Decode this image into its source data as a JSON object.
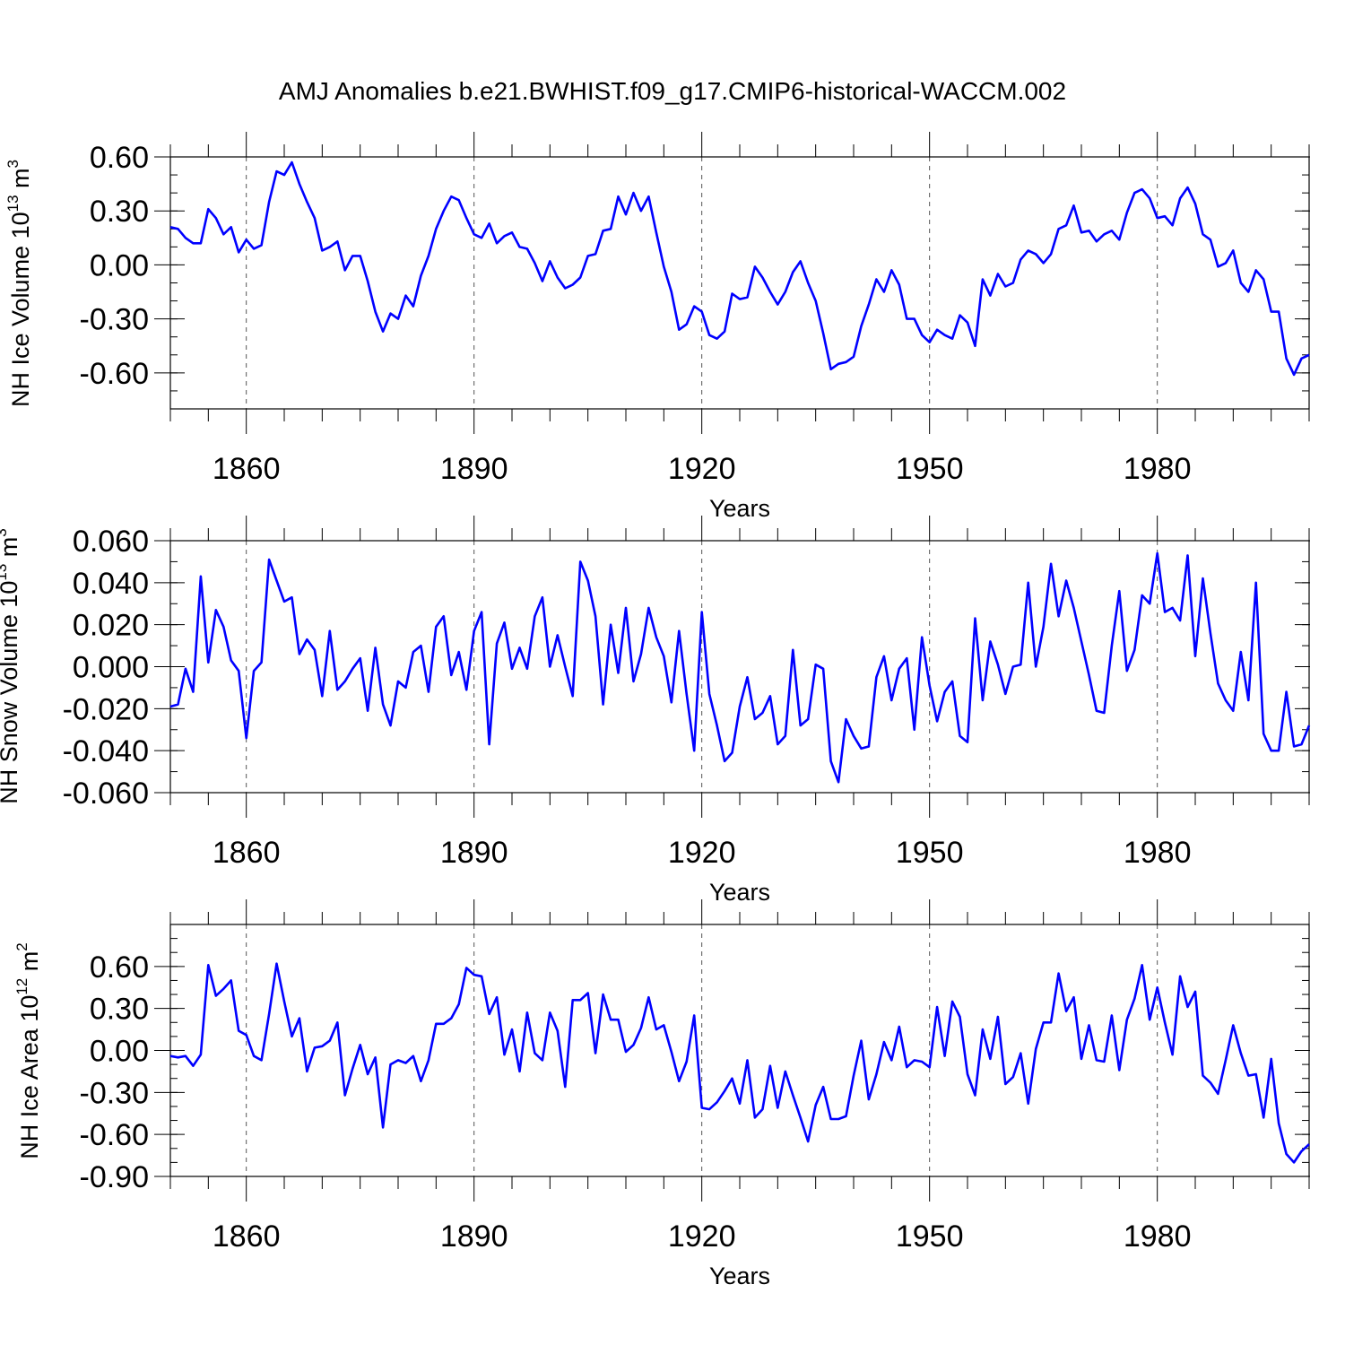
{
  "figure_title": "AMJ Anomalies b.e21.BWHIST.f09_g17.CMIP6-historical-WACCM.002",
  "colors": {
    "series": "#0000ff",
    "grid": "#555555",
    "axis": "#000000"
  },
  "chart_data": [
    {
      "type": "line",
      "title": "AMJ Anomalies b.e21.BWHIST.f09_g17.CMIP6-historical-WACCM.002",
      "xlabel": "Years",
      "ylabel": "NH Ice Volume 10",
      "ylabel_exp": "13",
      "ylabel_unit": " m",
      "ylabel_unit_exp": "3",
      "x_start": 1850,
      "x_step": 1,
      "xlim": [
        1850,
        2000
      ],
      "ylim": [
        -0.8,
        0.6
      ],
      "ymajor": [
        -0.6,
        -0.3,
        0.0,
        0.3,
        0.6
      ],
      "ymajor_labels": [
        "-0.60",
        "-0.30",
        "0.00",
        "0.30",
        "0.60"
      ],
      "yminor_step": 0.1,
      "xmajor": [
        1860,
        1890,
        1920,
        1950,
        1980
      ],
      "xmajor_labels": [
        "1860",
        "1890",
        "1920",
        "1950",
        "1980"
      ],
      "xgrid": true,
      "values": [
        0.21,
        0.2,
        0.15,
        0.12,
        0.12,
        0.31,
        0.26,
        0.17,
        0.21,
        0.07,
        0.14,
        0.09,
        0.11,
        0.35,
        0.52,
        0.5,
        0.57,
        0.45,
        0.35,
        0.26,
        0.08,
        0.1,
        0.13,
        -0.03,
        0.05,
        0.05,
        -0.09,
        -0.26,
        -0.37,
        -0.27,
        -0.3,
        -0.17,
        -0.23,
        -0.06,
        0.05,
        0.2,
        0.3,
        0.38,
        0.36,
        0.26,
        0.17,
        0.15,
        0.23,
        0.12,
        0.16,
        0.18,
        0.1,
        0.09,
        0.01,
        -0.09,
        0.02,
        -0.07,
        -0.13,
        -0.11,
        -0.07,
        0.05,
        0.06,
        0.19,
        0.2,
        0.38,
        0.28,
        0.4,
        0.3,
        0.38,
        0.18,
        -0.01,
        -0.15,
        -0.36,
        -0.33,
        -0.23,
        -0.26,
        -0.39,
        -0.41,
        -0.37,
        -0.16,
        -0.19,
        -0.18,
        -0.01,
        -0.07,
        -0.15,
        -0.22,
        -0.15,
        -0.04,
        0.02,
        -0.1,
        -0.2,
        -0.38,
        -0.58,
        -0.55,
        -0.54,
        -0.51,
        -0.34,
        -0.22,
        -0.08,
        -0.15,
        -0.03,
        -0.11,
        -0.3,
        -0.3,
        -0.39,
        -0.43,
        -0.36,
        -0.39,
        -0.41,
        -0.28,
        -0.32,
        -0.45,
        -0.08,
        -0.17,
        -0.05,
        -0.12,
        -0.1,
        0.03,
        0.08,
        0.06,
        0.01,
        0.06,
        0.2,
        0.22,
        0.33,
        0.18,
        0.19,
        0.13,
        0.17,
        0.19,
        0.14,
        0.29,
        0.4,
        0.42,
        0.37,
        0.26,
        0.27,
        0.22,
        0.37,
        0.43,
        0.34,
        0.17,
        0.14,
        -0.01,
        0.01,
        0.08,
        -0.1,
        -0.15,
        -0.03,
        -0.08,
        -0.26,
        -0.26,
        -0.52,
        -0.61,
        -0.52,
        -0.5
      ]
    },
    {
      "type": "line",
      "xlabel": "Years",
      "ylabel": "NH Snow Volume 10",
      "ylabel_exp": "13",
      "ylabel_unit": " m",
      "ylabel_unit_exp": "3",
      "x_start": 1850,
      "x_step": 1,
      "xlim": [
        1850,
        2000
      ],
      "ylim": [
        -0.06,
        0.06
      ],
      "ymajor": [
        -0.06,
        -0.04,
        -0.02,
        0.0,
        0.02,
        0.04,
        0.06
      ],
      "ymajor_labels": [
        "-0.060",
        "-0.040",
        "-0.020",
        "0.000",
        "0.020",
        "0.040",
        "0.060"
      ],
      "yminor_step": 0.01,
      "xmajor": [
        1860,
        1890,
        1920,
        1950,
        1980
      ],
      "xmajor_labels": [
        "1860",
        "1890",
        "1920",
        "1950",
        "1980"
      ],
      "xgrid": true,
      "values": [
        -0.019,
        -0.018,
        -0.001,
        -0.012,
        0.043,
        0.002,
        0.027,
        0.019,
        0.003,
        -0.002,
        -0.034,
        -0.002,
        0.002,
        0.051,
        0.041,
        0.031,
        0.033,
        0.006,
        0.013,
        0.008,
        -0.014,
        0.017,
        -0.011,
        -0.007,
        -0.001,
        0.004,
        -0.021,
        0.009,
        -0.018,
        -0.028,
        -0.007,
        -0.01,
        0.007,
        0.01,
        -0.012,
        0.019,
        0.024,
        -0.004,
        0.007,
        -0.011,
        0.017,
        0.026,
        -0.037,
        0.011,
        0.021,
        -0.001,
        0.009,
        -0.001,
        0.024,
        0.033,
        0.0,
        0.015,
        0.0,
        -0.014,
        0.05,
        0.041,
        0.024,
        -0.018,
        0.02,
        -0.003,
        0.028,
        -0.007,
        0.006,
        0.028,
        0.014,
        0.005,
        -0.017,
        0.017,
        -0.013,
        -0.04,
        0.026,
        -0.013,
        -0.028,
        -0.045,
        -0.041,
        -0.019,
        -0.005,
        -0.025,
        -0.022,
        -0.014,
        -0.037,
        -0.033,
        0.008,
        -0.028,
        -0.025,
        0.001,
        -0.001,
        -0.045,
        -0.055,
        -0.025,
        -0.033,
        -0.039,
        -0.038,
        -0.005,
        0.005,
        -0.016,
        -0.001,
        0.004,
        -0.03,
        0.014,
        -0.009,
        -0.026,
        -0.012,
        -0.007,
        -0.033,
        -0.036,
        0.023,
        -0.016,
        0.012,
        0.001,
        -0.013,
        0.0,
        0.001,
        0.04,
        0.0,
        0.019,
        0.049,
        0.024,
        0.041,
        0.028,
        0.012,
        -0.004,
        -0.021,
        -0.022,
        0.01,
        0.036,
        -0.002,
        0.008,
        0.034,
        0.03,
        0.054,
        0.026,
        0.028,
        0.022,
        0.053,
        0.005,
        0.042,
        0.016,
        -0.008,
        -0.016,
        -0.021,
        0.007,
        -0.016,
        0.04,
        -0.032,
        -0.04,
        -0.04,
        -0.012,
        -0.038,
        -0.037,
        -0.028
      ]
    },
    {
      "type": "line",
      "xlabel": "Years",
      "ylabel": "NH Ice Area 10",
      "ylabel_exp": "12",
      "ylabel_unit": " m",
      "ylabel_unit_exp": "2",
      "x_start": 1850,
      "x_step": 1,
      "xlim": [
        1850,
        2000
      ],
      "ylim": [
        -0.9,
        0.9
      ],
      "ymajor": [
        -0.9,
        -0.6,
        -0.3,
        0.0,
        0.3,
        0.6
      ],
      "ymajor_labels": [
        "-0.90",
        "-0.60",
        "-0.30",
        "0.00",
        "0.30",
        "0.60"
      ],
      "yminor_step": 0.1,
      "xmajor": [
        1860,
        1890,
        1920,
        1950,
        1980
      ],
      "xmajor_labels": [
        "1860",
        "1890",
        "1920",
        "1950",
        "1980"
      ],
      "xgrid": true,
      "values": [
        -0.04,
        -0.05,
        -0.04,
        -0.11,
        -0.03,
        0.61,
        0.39,
        0.44,
        0.5,
        0.14,
        0.11,
        -0.04,
        -0.07,
        0.26,
        0.62,
        0.35,
        0.1,
        0.23,
        -0.15,
        0.02,
        0.03,
        0.07,
        0.2,
        -0.32,
        -0.13,
        0.04,
        -0.17,
        -0.05,
        -0.55,
        -0.1,
        -0.07,
        -0.09,
        -0.04,
        -0.22,
        -0.07,
        0.19,
        0.19,
        0.23,
        0.33,
        0.59,
        0.54,
        0.53,
        0.26,
        0.38,
        -0.03,
        0.15,
        -0.15,
        0.27,
        -0.02,
        -0.07,
        0.27,
        0.14,
        -0.26,
        0.36,
        0.36,
        0.41,
        -0.02,
        0.4,
        0.22,
        0.22,
        -0.01,
        0.04,
        0.16,
        0.38,
        0.15,
        0.18,
        -0.01,
        -0.22,
        -0.08,
        0.25,
        -0.41,
        -0.42,
        -0.37,
        -0.29,
        -0.2,
        -0.38,
        -0.07,
        -0.48,
        -0.42,
        -0.11,
        -0.41,
        -0.15,
        -0.32,
        -0.48,
        -0.65,
        -0.39,
        -0.26,
        -0.49,
        -0.49,
        -0.47,
        -0.18,
        0.07,
        -0.35,
        -0.17,
        0.06,
        -0.07,
        0.17,
        -0.12,
        -0.07,
        -0.08,
        -0.12,
        0.31,
        -0.04,
        0.35,
        0.24,
        -0.17,
        -0.32,
        0.15,
        -0.06,
        0.24,
        -0.24,
        -0.19,
        -0.02,
        -0.38,
        0.01,
        0.2,
        0.2,
        0.55,
        0.28,
        0.38,
        -0.06,
        0.18,
        -0.07,
        -0.08,
        0.25,
        -0.14,
        0.22,
        0.37,
        0.61,
        0.22,
        0.45,
        0.2,
        -0.03,
        0.53,
        0.31,
        0.42,
        -0.18,
        -0.23,
        -0.31,
        -0.07,
        0.18,
        -0.02,
        -0.18,
        -0.17,
        -0.48,
        -0.06,
        -0.52,
        -0.74,
        -0.8,
        -0.72,
        -0.67
      ]
    }
  ]
}
